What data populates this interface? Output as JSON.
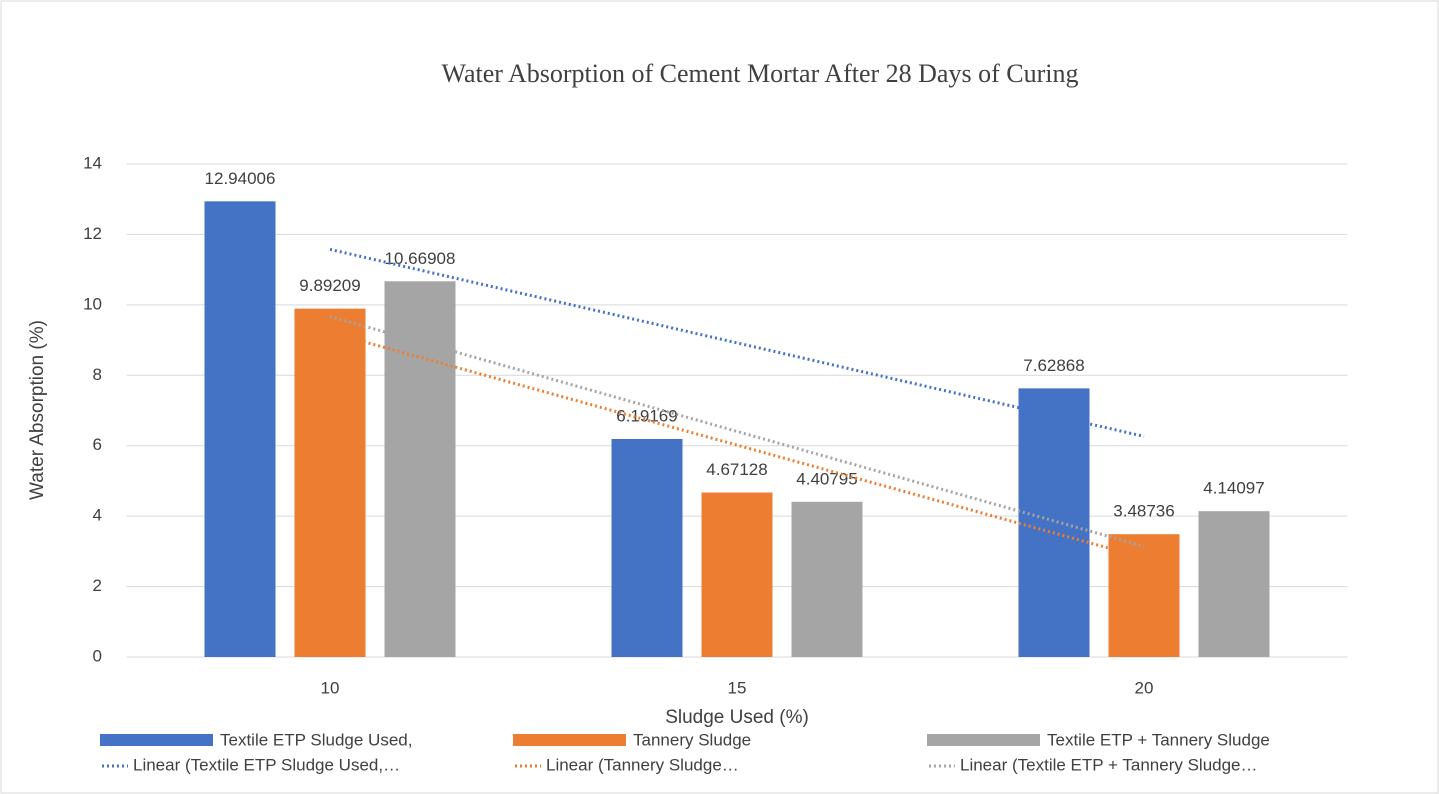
{
  "chart_data": {
    "type": "bar",
    "title": "Water Absorption of Cement Mortar After 28 Days of Curing",
    "x_label": "Sludge Used (%)",
    "y_label": "Water Absorption (%)",
    "categories": [
      "10",
      "15",
      "20"
    ],
    "series": [
      {
        "name": "Textile ETP Sludge Used,",
        "color": "#4472c4",
        "values": [
          12.94006,
          6.19169,
          7.62868
        ],
        "trendline": "Linear (Textile ETP Sludge Used,…"
      },
      {
        "name": "Tannery Sludge",
        "color": "#ed7d31",
        "values": [
          9.89209,
          4.67128,
          3.48736
        ],
        "trendline": "Linear (Tannery Sludge…"
      },
      {
        "name": "Textile ETP + Tannery Sludge",
        "color": "#a5a5a5",
        "values": [
          10.66908,
          4.40795,
          4.14097
        ],
        "trendline": "Linear (Textile ETP + Tannery Sludge…"
      }
    ],
    "ylim": [
      0,
      14
    ],
    "yticks": [
      0,
      2,
      4,
      6,
      8,
      10,
      12,
      14
    ],
    "grid": true,
    "legend": "bottom"
  }
}
